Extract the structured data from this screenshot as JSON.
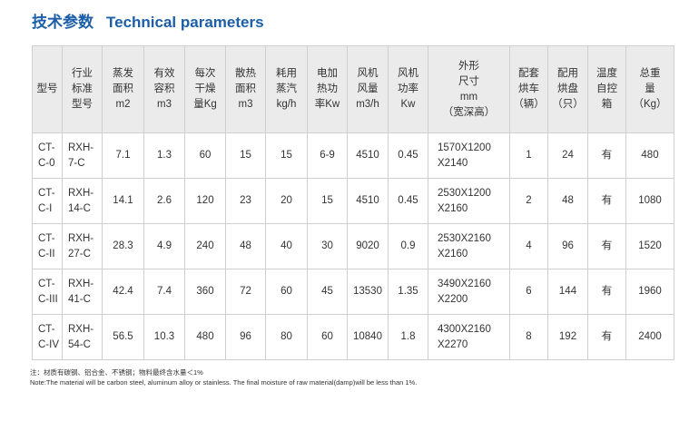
{
  "title": {
    "zh": "技术参数",
    "en": "Technical parameters"
  },
  "table": {
    "headers": [
      [
        "型号"
      ],
      [
        "行业",
        "标准",
        "型号"
      ],
      [
        "蒸发",
        "面积",
        "m2"
      ],
      [
        "有效",
        "容积",
        "m3"
      ],
      [
        "每次",
        "干燥",
        "量Kg"
      ],
      [
        "散热",
        "面积",
        "m3"
      ],
      [
        "耗用",
        "蒸汽",
        "kg/h"
      ],
      [
        "电加",
        "热功",
        "率Kw"
      ],
      [
        "风机",
        "风量",
        "m3/h"
      ],
      [
        "风机",
        "功率",
        "Kw"
      ],
      [
        "外形",
        "尺寸",
        "mm",
        "（宽深高）"
      ],
      [
        "配套",
        "烘车",
        "（辆）"
      ],
      [
        "配用",
        "烘盘",
        "（只）"
      ],
      [
        "温度",
        "自控",
        "箱"
      ],
      [
        "总重",
        "量",
        "（Kg）"
      ]
    ],
    "rows": [
      [
        [
          "CT-",
          "C-0"
        ],
        [
          "RXH-",
          "7-C"
        ],
        "7.1",
        "1.3",
        "60",
        "15",
        "15",
        "6-9",
        "4510",
        "0.45",
        [
          "1570X1200",
          "X2140"
        ],
        "1",
        "24",
        "有",
        "480"
      ],
      [
        [
          "CT-",
          "C-I"
        ],
        [
          "RXH-",
          "14-C"
        ],
        "14.1",
        "2.6",
        "120",
        "23",
        "20",
        "15",
        "4510",
        "0.45",
        [
          "2530X1200",
          "X2160"
        ],
        "2",
        "48",
        "有",
        "1080"
      ],
      [
        [
          "CT-",
          "C-II"
        ],
        [
          "RXH-",
          "27-C"
        ],
        "28.3",
        "4.9",
        "240",
        "48",
        "40",
        "30",
        "9020",
        "0.9",
        [
          "2530X2160",
          "X2160"
        ],
        "4",
        "96",
        "有",
        "1520"
      ],
      [
        [
          "CT-",
          "C-III"
        ],
        [
          "RXH-",
          "41-C"
        ],
        "42.4",
        "7.4",
        "360",
        "72",
        "60",
        "45",
        "13530",
        "1.35",
        [
          "3490X2160",
          "X2200"
        ],
        "6",
        "144",
        "有",
        "1960"
      ],
      [
        [
          "CT-",
          "C-IV"
        ],
        [
          "RXH-",
          "54-C"
        ],
        "56.5",
        "10.3",
        "480",
        "96",
        "80",
        "60",
        "10840",
        "1.8",
        [
          "4300X2160",
          "X2270"
        ],
        "8",
        "192",
        "有",
        "2400"
      ]
    ]
  },
  "notes": [
    "注：材质有碳钢、铝合金、不锈钢；物料最终含水量＜1%",
    "Note:The material will be carbon steel, aluminum alloy or stainless. The final moisture of raw material(damp)will be less than 1%."
  ]
}
